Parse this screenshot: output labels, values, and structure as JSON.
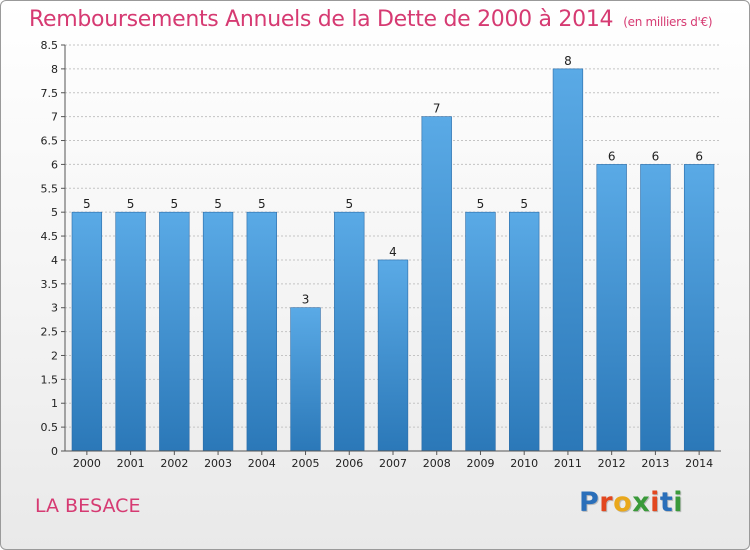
{
  "chart_data": {
    "type": "bar",
    "title": "Remboursements Annuels de la Dette de 2000 à 2014",
    "subtitle": "(en milliers d'€)",
    "xlabel": "",
    "ylabel": "",
    "categories": [
      "2000",
      "2001",
      "2002",
      "2003",
      "2004",
      "2005",
      "2006",
      "2007",
      "2008",
      "2009",
      "2010",
      "2011",
      "2012",
      "2013",
      "2014"
    ],
    "values": [
      5,
      5,
      5,
      5,
      5,
      3,
      5,
      4,
      7,
      5,
      5,
      8,
      6,
      6,
      6
    ],
    "data_labels": [
      "5",
      "5",
      "5",
      "5",
      "5",
      "3",
      "5",
      "4",
      "7",
      "5",
      "5",
      "8",
      "6",
      "6",
      "6"
    ],
    "ylim": [
      0,
      8.5
    ],
    "yticks": [
      0,
      0.5,
      1,
      1.5,
      2,
      2.5,
      3,
      3.5,
      4,
      4.5,
      5,
      5.5,
      6,
      6.5,
      7,
      7.5,
      8,
      8.5
    ],
    "ytick_labels": [
      "0",
      "0.5",
      "1",
      "1.5",
      "2",
      "2.5",
      "3",
      "3.5",
      "4",
      "4.5",
      "5",
      "5.5",
      "6",
      "6.5",
      "7",
      "7.5",
      "8",
      "8.5"
    ],
    "grid": true,
    "legend": "none",
    "bar_color_top": "#5aaae6",
    "bar_color_bottom": "#2b78b8",
    "grid_color": "#c4c4c4"
  },
  "footer": {
    "commune": "LA BESACE",
    "logo_letters": [
      "P",
      "r",
      "o",
      "x",
      "i",
      "t",
      "i"
    ],
    "logo_colors": [
      "#2a6fba",
      "#e2471f",
      "#e9a81c",
      "#3a9a3a",
      "#e2471f",
      "#2a6fba",
      "#3a9a3a"
    ]
  },
  "colors": {
    "title": "#d63a72"
  }
}
